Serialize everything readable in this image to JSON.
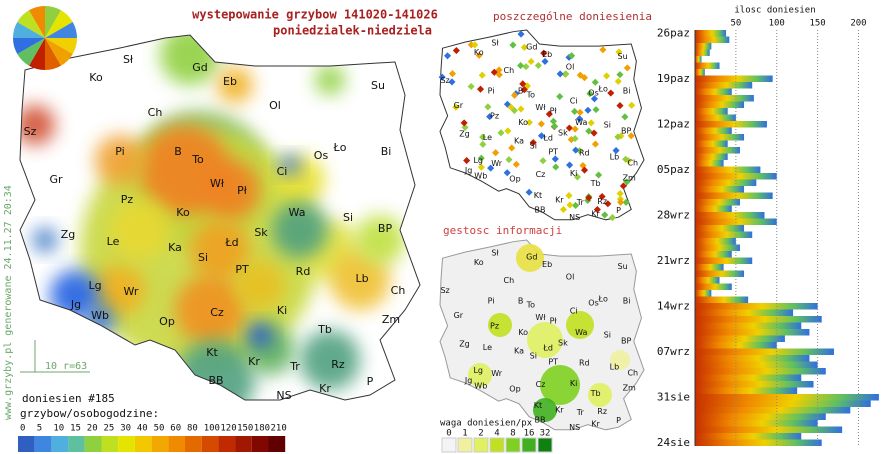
{
  "header": {
    "title": "wystepowanie grzybow 141020-141026",
    "subtitle": "poniedzialek-niedziela",
    "watermark": "www.grzyby.pl generowane 24.11.27 20:34"
  },
  "main_map": {
    "labels": [
      "Sł",
      "Gd",
      "Eb",
      "Ko",
      "Su",
      "Ol",
      "Ch",
      "Sz",
      "Pi",
      "B",
      "To",
      "Ci",
      "Os",
      "Ło",
      "Bi",
      "Gr",
      "Wł",
      "Pł",
      "Pz",
      "Ko",
      "Wa",
      "Si",
      "Zg",
      "Le",
      "Ka",
      "Sk",
      "BP",
      "Łd",
      "Si",
      "PT",
      "Rd",
      "Lb",
      "Ch",
      "Jg",
      "Lg",
      "Wb",
      "Wr",
      "Op",
      "Cz",
      "Ki",
      "Zm",
      "Tb",
      "Kt",
      "Kr",
      "Rz",
      "Tr",
      "BB",
      "Kr",
      "NS",
      "P"
    ],
    "scale_note": "10 r=63",
    "report_count": "doniesien #185",
    "legend": {
      "title": "grzybow/osobogodzine:",
      "ticks": [
        0,
        5,
        10,
        15,
        20,
        25,
        30,
        40,
        50,
        60,
        80,
        100,
        120,
        150,
        180,
        210
      ],
      "colors": [
        "#2f5fc0",
        "#3f86e0",
        "#4fb0e0",
        "#5fc0a0",
        "#8fd040",
        "#bfe020",
        "#e4e400",
        "#f2c800",
        "#f2a800",
        "#f08a00",
        "#e46a00",
        "#d44a00",
        "#c02a00",
        "#a01800",
        "#800800",
        "#600000"
      ]
    }
  },
  "points_map": {
    "title": "poszczególne doniesienia",
    "labels": [
      "Sł",
      "Gd",
      "Eb",
      "Ko",
      "Su",
      "Ol",
      "Ch",
      "Sz",
      "Pi",
      "B",
      "To",
      "Ci",
      "Os",
      "Ło",
      "Bi",
      "Gr",
      "Wł",
      "Pł",
      "Pz",
      "Ko",
      "Wa",
      "Si",
      "Zg",
      "Le",
      "Ka",
      "Sk",
      "BP",
      "Łd",
      "Si",
      "PT",
      "Rd",
      "Lb",
      "Ch",
      "Jg",
      "Lg",
      "Wb",
      "Wr",
      "Op",
      "Cz",
      "Ki",
      "Zm",
      "Tb",
      "Kt",
      "Kr",
      "Rz",
      "Tr",
      "BB",
      "Kr",
      "NS",
      "P"
    ]
  },
  "density_map": {
    "title": "gestosc informacji",
    "labels": [
      "Sł",
      "Gd",
      "Eb",
      "Ko",
      "Su",
      "Ol",
      "Ch",
      "Sz",
      "Pi",
      "B",
      "To",
      "Ci",
      "Os",
      "Ło",
      "Bi",
      "Gr",
      "Wł",
      "Pł",
      "Pz",
      "Ko",
      "Wa",
      "Si",
      "Zg",
      "Le",
      "Ka",
      "Sk",
      "BP",
      "Łd",
      "Si",
      "PT",
      "Rd",
      "Lb",
      "Ch",
      "Jg",
      "Lg",
      "Wb",
      "Wr",
      "Op",
      "Cz",
      "Ki",
      "Zm",
      "Tb",
      "Kt",
      "Kr",
      "Rz",
      "Tr",
      "BB",
      "Kr",
      "NS",
      "P"
    ],
    "legend": {
      "title": "waga doniesien/px",
      "ticks": [
        0,
        1,
        2,
        4,
        8,
        16,
        32
      ],
      "colors": [
        "#f4f4f4",
        "#f0f0a0",
        "#e0f060",
        "#c0e020",
        "#80d020",
        "#40b020",
        "#108010"
      ]
    }
  },
  "chart_data": {
    "type": "bar",
    "orientation": "horizontal",
    "title": "ilosc doniesien",
    "categories": [
      "26paz",
      null,
      null,
      null,
      null,
      null,
      null,
      "19paz",
      null,
      null,
      null,
      null,
      null,
      null,
      "12paz",
      null,
      null,
      null,
      null,
      null,
      null,
      "05paz",
      null,
      null,
      null,
      null,
      null,
      null,
      "28wrz",
      null,
      null,
      null,
      null,
      null,
      null,
      "21wrz",
      null,
      null,
      null,
      null,
      null,
      null,
      "14wrz",
      null,
      null,
      null,
      null,
      null,
      null,
      "07wrz",
      null,
      null,
      null,
      null,
      null,
      null,
      "31sie",
      null,
      null,
      null,
      null,
      null,
      null,
      "24sie"
    ],
    "values": [
      38,
      42,
      20,
      18,
      8,
      30,
      12,
      95,
      70,
      45,
      72,
      60,
      40,
      50,
      88,
      45,
      60,
      40,
      55,
      40,
      35,
      80,
      100,
      75,
      60,
      95,
      55,
      45,
      85,
      100,
      60,
      70,
      50,
      55,
      45,
      70,
      35,
      60,
      30,
      45,
      20,
      65,
      150,
      120,
      155,
      130,
      140,
      110,
      100,
      170,
      140,
      150,
      160,
      130,
      145,
      125,
      225,
      215,
      190,
      160,
      150,
      180,
      130,
      155
    ],
    "xlim": [
      0,
      230
    ],
    "xticks": [
      50,
      100,
      150,
      200
    ],
    "grid": true
  }
}
